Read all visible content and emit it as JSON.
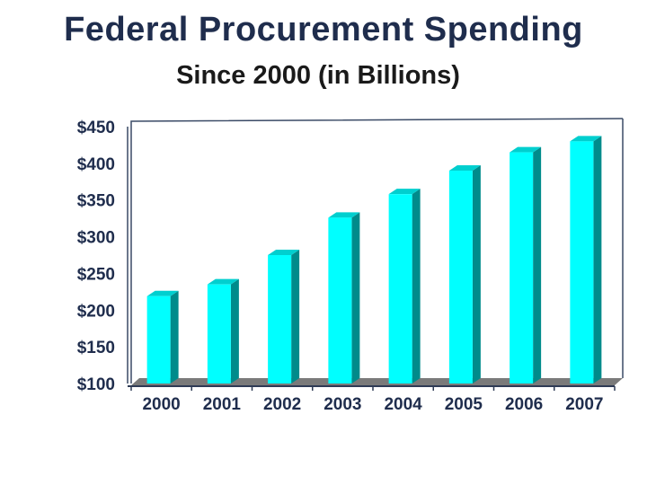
{
  "chart_data": {
    "type": "bar",
    "title": "Federal Procurement Spending",
    "subtitle": "Since 2000 (in Billions)",
    "categories": [
      "2000",
      "2001",
      "2002",
      "2003",
      "2004",
      "2005",
      "2006",
      "2007"
    ],
    "values": [
      219,
      235,
      275,
      326,
      358,
      390,
      415,
      430
    ],
    "y_ticks": [
      "$100",
      "$150",
      "$200",
      "$250",
      "$300",
      "$350",
      "$400",
      "$450"
    ],
    "ylim": [
      100,
      450
    ],
    "grid": false,
    "legend": "none",
    "colors": {
      "bar_front": "#00ffff",
      "bar_side": "#008b8b",
      "bar_top": "#00cfcf",
      "floor": "#7a7a7a",
      "title": "#1f2d4d"
    }
  }
}
